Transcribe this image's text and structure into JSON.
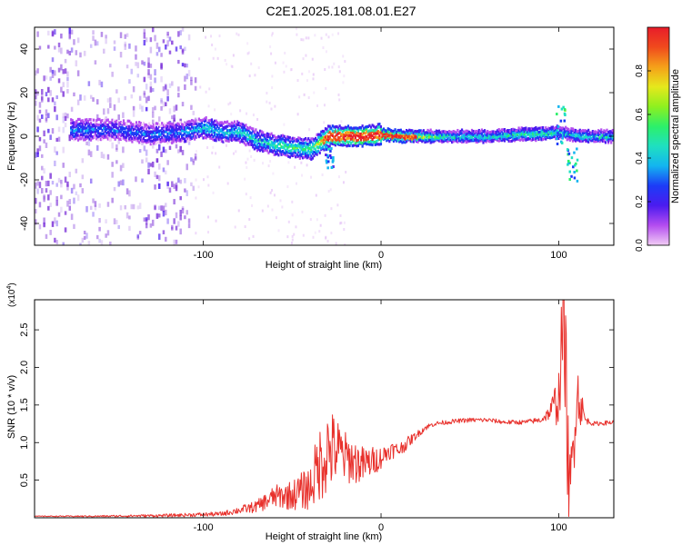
{
  "title": "C2E1.2025.181.08.01.E27",
  "colors": {
    "snr_line": "#e8312c",
    "spectrogram_scatter": "#7b2fd8",
    "colormap": [
      "#f2cdf5",
      "#b44df0",
      "#4b1bef",
      "#1c3cf7",
      "#13b5f0",
      "#1fe0c0",
      "#2cf06a",
      "#8ef01f",
      "#e6e81c",
      "#f5a01a",
      "#f04a1d",
      "#e81c2a"
    ]
  },
  "chart_data": [
    {
      "type": "heatmap",
      "subtype": "spectrogram",
      "xlabel": "Height of straight line (km)",
      "ylabel": "Frequency (Hz)",
      "xlim": [
        -195,
        131
      ],
      "ylim": [
        -50,
        50
      ],
      "xticks": [
        -100,
        0,
        100
      ],
      "yticks": [
        -40,
        -20,
        0,
        20,
        40
      ],
      "colorbar": {
        "label": "Normalized spectral amplitude",
        "range": [
          0,
          1
        ],
        "ticks": [
          0.0,
          0.2,
          0.4,
          0.6,
          0.8
        ]
      },
      "signal_track": [
        {
          "x": -170,
          "freq": 3,
          "amp": 0.35
        },
        {
          "x": -160,
          "freq": 3,
          "amp": 0.3
        },
        {
          "x": -150,
          "freq": 3,
          "amp": 0.3
        },
        {
          "x": -140,
          "freq": 2,
          "amp": 0.3
        },
        {
          "x": -130,
          "freq": 1,
          "amp": 0.3
        },
        {
          "x": -110,
          "freq": 2,
          "amp": 0.35
        },
        {
          "x": -100,
          "freq": 4,
          "amp": 0.4
        },
        {
          "x": -90,
          "freq": 2,
          "amp": 0.4
        },
        {
          "x": -80,
          "freq": 2,
          "amp": 0.45
        },
        {
          "x": -70,
          "freq": -2,
          "amp": 0.45
        },
        {
          "x": -60,
          "freq": -4,
          "amp": 0.5
        },
        {
          "x": -50,
          "freq": -5,
          "amp": 0.55
        },
        {
          "x": -40,
          "freq": -6,
          "amp": 0.55
        },
        {
          "x": -30,
          "freq": 0,
          "amp": 0.9
        },
        {
          "x": -20,
          "freq": 0,
          "amp": 0.95
        },
        {
          "x": -10,
          "freq": 0,
          "amp": 1.0
        },
        {
          "x": 0,
          "freq": 1,
          "amp": 0.95
        },
        {
          "x": 10,
          "freq": 0,
          "amp": 0.95
        },
        {
          "x": 20,
          "freq": 0,
          "amp": 0.7
        },
        {
          "x": 40,
          "freq": 0,
          "amp": 0.45
        },
        {
          "x": 60,
          "freq": 0,
          "amp": 0.45
        },
        {
          "x": 80,
          "freq": 1,
          "amp": 0.5
        },
        {
          "x": 90,
          "freq": 1,
          "amp": 0.55
        },
        {
          "x": 100,
          "freq": 2,
          "amp": 0.45
        },
        {
          "x": 110,
          "freq": 0,
          "amp": 0.45
        },
        {
          "x": 120,
          "freq": 0,
          "amp": 0.45
        },
        {
          "x": 131,
          "freq": 0,
          "amp": 0.45
        }
      ]
    },
    {
      "type": "line",
      "xlabel": "Height of straight line (km)",
      "ylabel": "SNR (10 * v/v)",
      "y_multiplier_label": "(x10",
      "y_multiplier_exponent": "4",
      "y_multiplier_close": ")",
      "xlim": [
        -195,
        131
      ],
      "ylim": [
        0,
        2.9
      ],
      "xticks": [
        -100,
        0,
        100
      ],
      "yticks": [
        0.5,
        1.0,
        1.5,
        2.0,
        2.5
      ],
      "series": [
        {
          "x": [
            -195,
            -160,
            -120,
            -90,
            -80,
            -70,
            -60,
            -50,
            -40,
            -35,
            -30,
            -25,
            -20,
            -15,
            -10,
            -5,
            0,
            5,
            10,
            15,
            20,
            25,
            30,
            40,
            50,
            60,
            70,
            80,
            90,
            95,
            100,
            103,
            106,
            110,
            115,
            120,
            131
          ],
          "y": [
            0.02,
            0.02,
            0.03,
            0.05,
            0.1,
            0.15,
            0.28,
            0.3,
            0.4,
            0.7,
            0.9,
            0.9,
            0.8,
            0.75,
            0.7,
            0.75,
            0.8,
            0.9,
            0.9,
            1.0,
            1.1,
            1.2,
            1.25,
            1.28,
            1.3,
            1.3,
            1.27,
            1.27,
            1.3,
            1.4,
            1.6,
            2.8,
            0.1,
            1.7,
            1.3,
            1.25,
            1.27
          ],
          "noise": [
            0.005,
            0.01,
            0.02,
            0.03,
            0.05,
            0.08,
            0.15,
            0.2,
            0.3,
            0.5,
            0.6,
            0.45,
            0.35,
            0.3,
            0.25,
            0.2,
            0.15,
            0.12,
            0.1,
            0.08,
            0.05,
            0.04,
            0.03,
            0.03,
            0.03,
            0.03,
            0.03,
            0.03,
            0.04,
            0.1,
            0.4,
            0.9,
            0.7,
            0.5,
            0.05,
            0.03,
            0.03
          ]
        }
      ]
    }
  ]
}
